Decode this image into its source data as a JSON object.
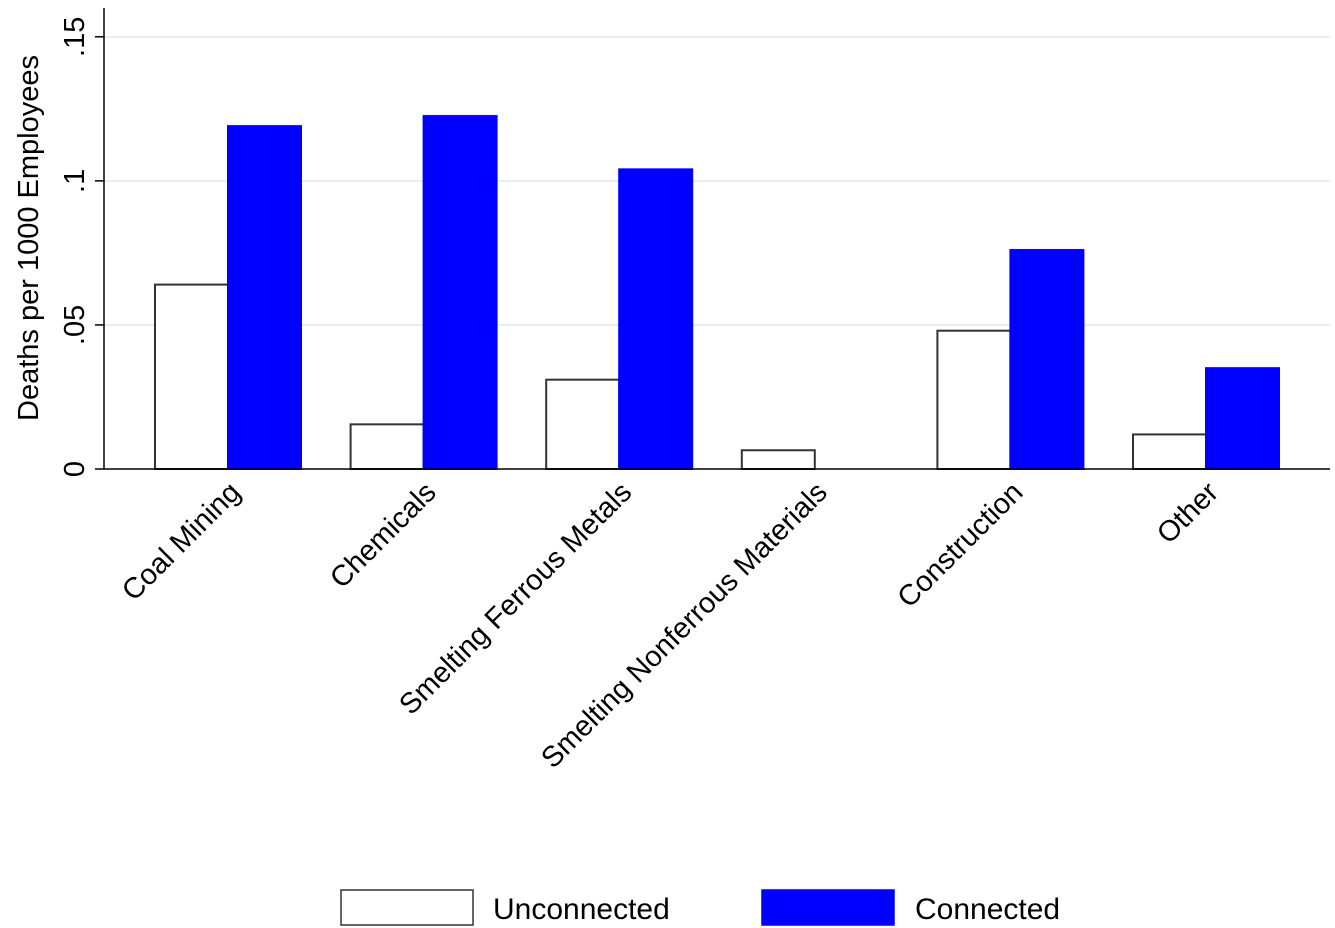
{
  "chart_data": {
    "type": "bar",
    "title": "",
    "xlabel": "",
    "ylabel": "Deaths per 1000 Employees",
    "ylim": [
      0,
      0.16
    ],
    "yticks": [
      {
        "value": 0,
        "label": "0"
      },
      {
        "value": 0.05,
        "label": ".05"
      },
      {
        "value": 0.1,
        "label": ".1"
      },
      {
        "value": 0.15,
        "label": ".15"
      }
    ],
    "grid": true,
    "legend_position": "bottom",
    "categories": [
      "Coal Mining",
      "Chemicals",
      "Smelting Ferrous Metals",
      "Smelting Nonferrous Materials",
      "Construction",
      "Other"
    ],
    "series": [
      {
        "name": "Unconnected",
        "values": [
          0.064,
          0.0155,
          0.031,
          0.0065,
          0.048,
          0.012
        ],
        "fill": "#ffffff",
        "stroke": "#333333"
      },
      {
        "name": "Connected",
        "values": [
          0.119,
          0.1225,
          0.104,
          0.0,
          0.076,
          0.035
        ],
        "fill": "#0000ff",
        "stroke": "#0000ff"
      }
    ],
    "colors": {
      "grid": "#e6eef2",
      "axis": "#000000"
    }
  }
}
